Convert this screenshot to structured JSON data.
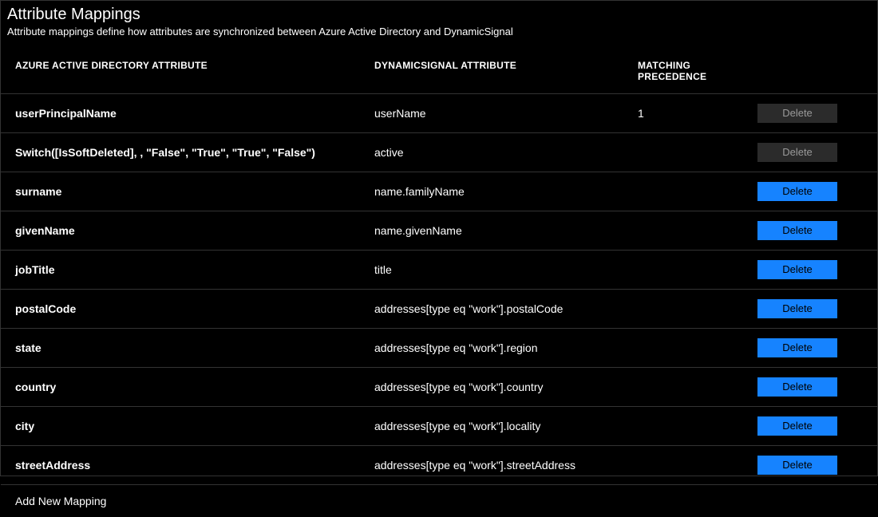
{
  "header": {
    "title": "Attribute Mappings",
    "subtitle": "Attribute mappings define how attributes are synchronized between Azure Active Directory and DynamicSignal"
  },
  "columns": {
    "aad": "AZURE ACTIVE DIRECTORY ATTRIBUTE",
    "ds": "DYNAMICSIGNAL ATTRIBUTE",
    "mp": "MATCHING PRECEDENCE"
  },
  "button_label": "Delete",
  "colors": {
    "background": "#000000",
    "text": "#ffffff",
    "border": "#333333",
    "btn_active_bg": "#1683ff",
    "btn_active_fg": "#000000",
    "btn_disabled_bg": "#2b2b2b",
    "btn_disabled_fg": "#9a9a9a"
  },
  "rows": [
    {
      "aad": "userPrincipalName",
      "ds": "userName",
      "mp": "1",
      "disabled": true
    },
    {
      "aad": "Switch([IsSoftDeleted], , \"False\", \"True\", \"True\", \"False\")",
      "ds": "active",
      "mp": "",
      "disabled": true
    },
    {
      "aad": "surname",
      "ds": "name.familyName",
      "mp": "",
      "disabled": false
    },
    {
      "aad": "givenName",
      "ds": "name.givenName",
      "mp": "",
      "disabled": false
    },
    {
      "aad": "jobTitle",
      "ds": "title",
      "mp": "",
      "disabled": false
    },
    {
      "aad": "postalCode",
      "ds": "addresses[type eq \"work\"].postalCode",
      "mp": "",
      "disabled": false
    },
    {
      "aad": "state",
      "ds": "addresses[type eq \"work\"].region",
      "mp": "",
      "disabled": false
    },
    {
      "aad": "country",
      "ds": "addresses[type eq \"work\"].country",
      "mp": "",
      "disabled": false
    },
    {
      "aad": "city",
      "ds": "addresses[type eq \"work\"].locality",
      "mp": "",
      "disabled": false
    },
    {
      "aad": "streetAddress",
      "ds": "addresses[type eq \"work\"].streetAddress",
      "mp": "",
      "disabled": false
    }
  ],
  "footer": {
    "add_label": "Add New Mapping"
  }
}
